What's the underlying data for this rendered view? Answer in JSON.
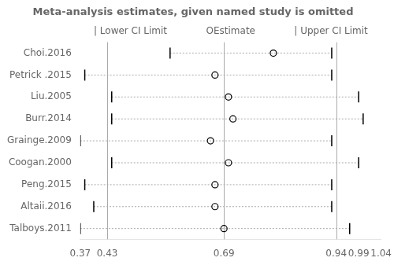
{
  "chart_data": {
    "type": "forest",
    "title": "Meta-analysis estimates, given named study is omitted",
    "categories": [
      "Choi.2016",
      "Petrick .2015",
      "Liu.2005",
      "Burr.2014",
      "Grainge.2009",
      "Coogan.2000",
      "Peng.2015",
      "Altaii.2016",
      "Talboys.2011"
    ],
    "series": [
      {
        "values": [
          0.57,
          0.38,
          0.44,
          0.44,
          0.37,
          0.44,
          0.38,
          0.4,
          0.37
        ],
        "marker": "|",
        "color": "black"
      },
      {
        "values": [
          0.8,
          0.67,
          0.7,
          0.71,
          0.66,
          0.7,
          0.67,
          0.67,
          0.69
        ],
        "marker": "open_circle",
        "color": "black"
      },
      {
        "values": [
          0.93,
          0.93,
          0.99,
          1.0,
          0.93,
          0.99,
          0.93,
          0.93,
          0.97
        ],
        "marker": "|",
        "color": "black"
      }
    ],
    "color": "#aaaaaa",
    "line_style": "dotted",
    "vlines": [
      0.43,
      0.69,
      0.94
    ],
    "annotations": [
      "| Lower CI Limit",
      "OEstimate",
      "| Upper CI Limit"
    ],
    "xlim": [
      0.37,
      1.04
    ],
    "xticks": [
      0.37,
      0.43,
      0.69,
      0.94,
      0.99,
      1.04
    ],
    "grid": false
  }
}
